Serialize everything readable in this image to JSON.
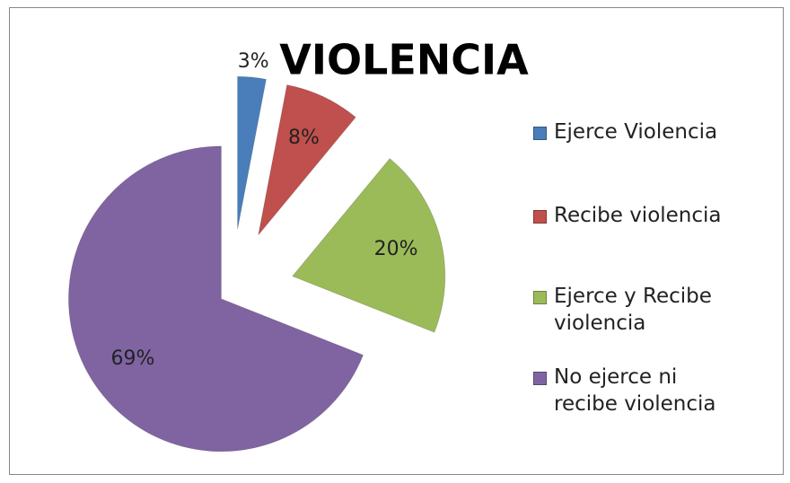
{
  "chart_data": {
    "type": "pie",
    "title": "VIOLENCIA",
    "categories": [
      "Ejerce Violencia",
      "Recibe violencia",
      "Ejerce y Recibe violencia",
      "No ejerce ni recibe violencia"
    ],
    "values": [
      3,
      8,
      20,
      69
    ],
    "value_labels": [
      "3%",
      "8%",
      "20%",
      "69%"
    ],
    "colors": [
      "#4a7ebb",
      "#c0504d",
      "#9bbb59",
      "#8064a2"
    ],
    "legend": "right"
  }
}
